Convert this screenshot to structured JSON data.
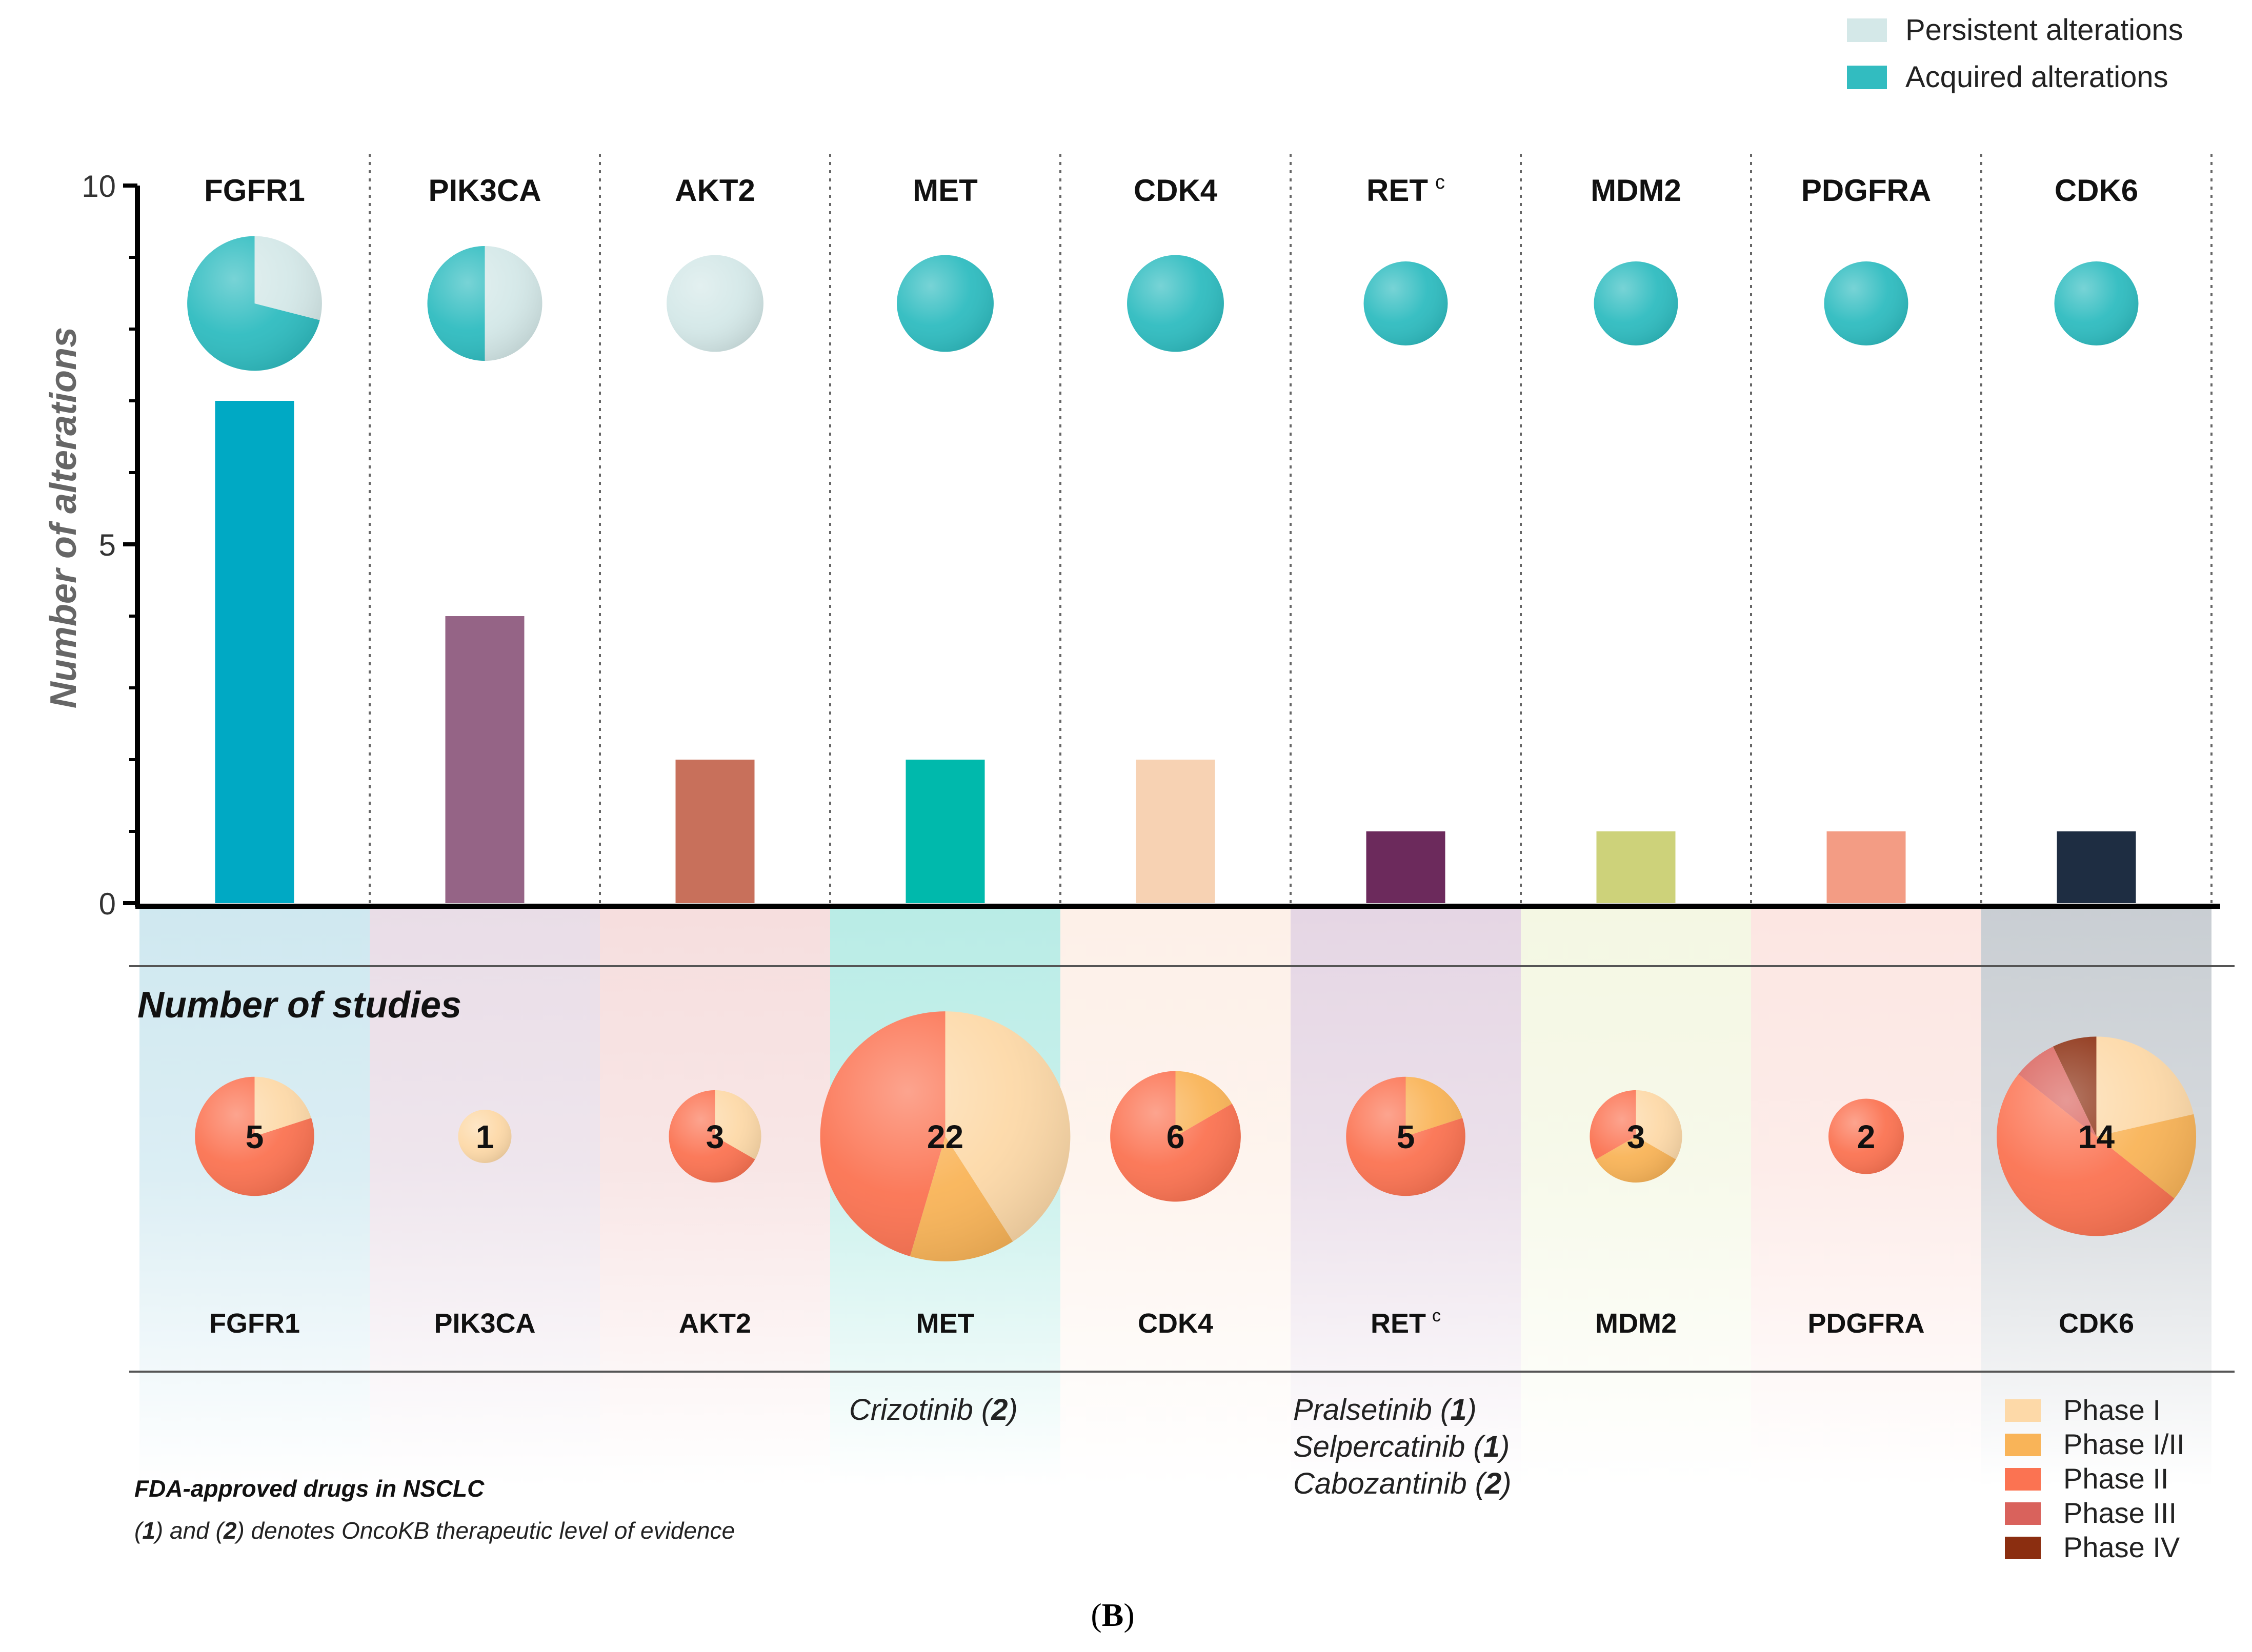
{
  "chart_data": {
    "type": "bar",
    "ylabel": "Number of alterations",
    "ylim": [
      0,
      10
    ],
    "yticks": [
      0,
      5,
      10
    ],
    "categories": [
      "FGFR1",
      "PIK3CA",
      "AKT2",
      "MET",
      "CDK4",
      "RET",
      "MDM2",
      "PDGFRA",
      "CDK6"
    ],
    "category_superscripts": [
      "",
      "",
      "",
      "",
      "",
      "c",
      "",
      "",
      ""
    ],
    "values": [
      7,
      4,
      2,
      2,
      2,
      1,
      1,
      1,
      1
    ],
    "bar_colors": [
      "#00a9c4",
      "#956486",
      "#c8705b",
      "#00b9ac",
      "#f7d2b3",
      "#6c2a5c",
      "#cdd27a",
      "#f39c84",
      "#1e2d42"
    ],
    "band_colors": [
      "#cfe8f0",
      "#e9dde7",
      "#f6dede",
      "#b9ece6",
      "#fdf0e8",
      "#e5d6e4",
      "#f4f7e3",
      "#fce6e2",
      "#c9ced3"
    ],
    "alteration_legend": [
      {
        "label": "Persistent alterations",
        "color": "#d4e8e8"
      },
      {
        "label": "Acquired alterations",
        "color": "#32bcc0"
      }
    ],
    "alteration_pies": {
      "persistent_fraction": [
        0.29,
        0.5,
        1.0,
        0,
        0,
        0,
        0,
        0,
        0
      ],
      "colors": {
        "persistent": "#d4e8e8",
        "acquired": "#2fbcc0"
      }
    },
    "studies_title": "Number of studies",
    "studies": {
      "totals": [
        5,
        1,
        3,
        22,
        6,
        5,
        3,
        2,
        14
      ],
      "phases": [
        "Phase I",
        "Phase I/II",
        "Phase II",
        "Phase III",
        "Phase IV"
      ],
      "phase_colors": [
        "#fdd9a8",
        "#f9b458",
        "#fb7352",
        "#d9625c",
        "#8b2e10"
      ],
      "counts": [
        [
          1,
          0,
          4,
          0,
          0
        ],
        [
          1,
          0,
          0,
          0,
          0
        ],
        [
          1,
          0,
          2,
          0,
          0
        ],
        [
          9,
          3,
          10,
          0,
          0
        ],
        [
          0,
          1,
          5,
          0,
          0
        ],
        [
          0,
          1,
          4,
          0,
          0
        ],
        [
          1,
          1,
          1,
          0,
          0
        ],
        [
          0,
          0,
          2,
          0,
          0
        ],
        [
          3,
          2,
          7,
          1,
          1
        ]
      ]
    },
    "fda_drugs": {
      "MET": [
        {
          "name": "Crizotinib",
          "level": "2"
        }
      ],
      "RET": [
        {
          "name": "Pralsetinib",
          "level": "1"
        },
        {
          "name": "Selpercatinib",
          "level": "1"
        },
        {
          "name": "Cabozantinib",
          "level": "2"
        }
      ]
    },
    "notes": {
      "title": "FDA-approved drugs in NSCLC",
      "evidence": {
        "open1": "(",
        "n1": "1",
        "mid": ") and (",
        "n2": "2",
        "rest": ") denotes OncoKB therapeutic level of evidence"
      }
    },
    "panel_label": {
      "open": "(",
      "letter": "B",
      "close": ")"
    }
  }
}
